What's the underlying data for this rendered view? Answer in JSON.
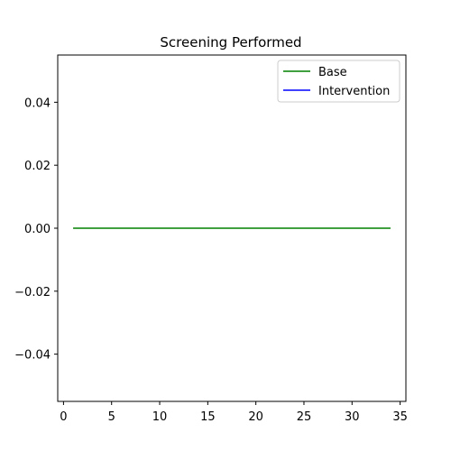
{
  "chart_data": {
    "type": "line",
    "title": "Screening Performed",
    "xlabel": "",
    "ylabel": "",
    "xlim": [
      -0.6,
      35.6
    ],
    "ylim": [
      -0.055,
      0.055
    ],
    "xticks": [
      0,
      5,
      10,
      15,
      20,
      25,
      30,
      35
    ],
    "yticks": [
      -0.04,
      -0.02,
      0.0,
      0.02,
      0.04
    ],
    "ytick_labels": [
      "−0.04",
      "−0.02",
      "0.00",
      "0.02",
      "0.04"
    ],
    "grid": false,
    "legend_position": "top-right",
    "series": [
      {
        "name": "Base",
        "color": "#008000",
        "x": [
          1,
          2,
          3,
          4,
          5,
          6,
          7,
          8,
          9,
          10,
          11,
          12,
          13,
          14,
          15,
          16,
          17,
          18,
          19,
          20,
          21,
          22,
          23,
          24,
          25,
          26,
          27,
          28,
          29,
          30,
          31,
          32,
          33,
          34
        ],
        "y": [
          0,
          0,
          0,
          0,
          0,
          0,
          0,
          0,
          0,
          0,
          0,
          0,
          0,
          0,
          0,
          0,
          0,
          0,
          0,
          0,
          0,
          0,
          0,
          0,
          0,
          0,
          0,
          0,
          0,
          0,
          0,
          0,
          0,
          0
        ]
      },
      {
        "name": "Intervention",
        "color": "#0000ff",
        "x": [],
        "y": []
      }
    ]
  }
}
